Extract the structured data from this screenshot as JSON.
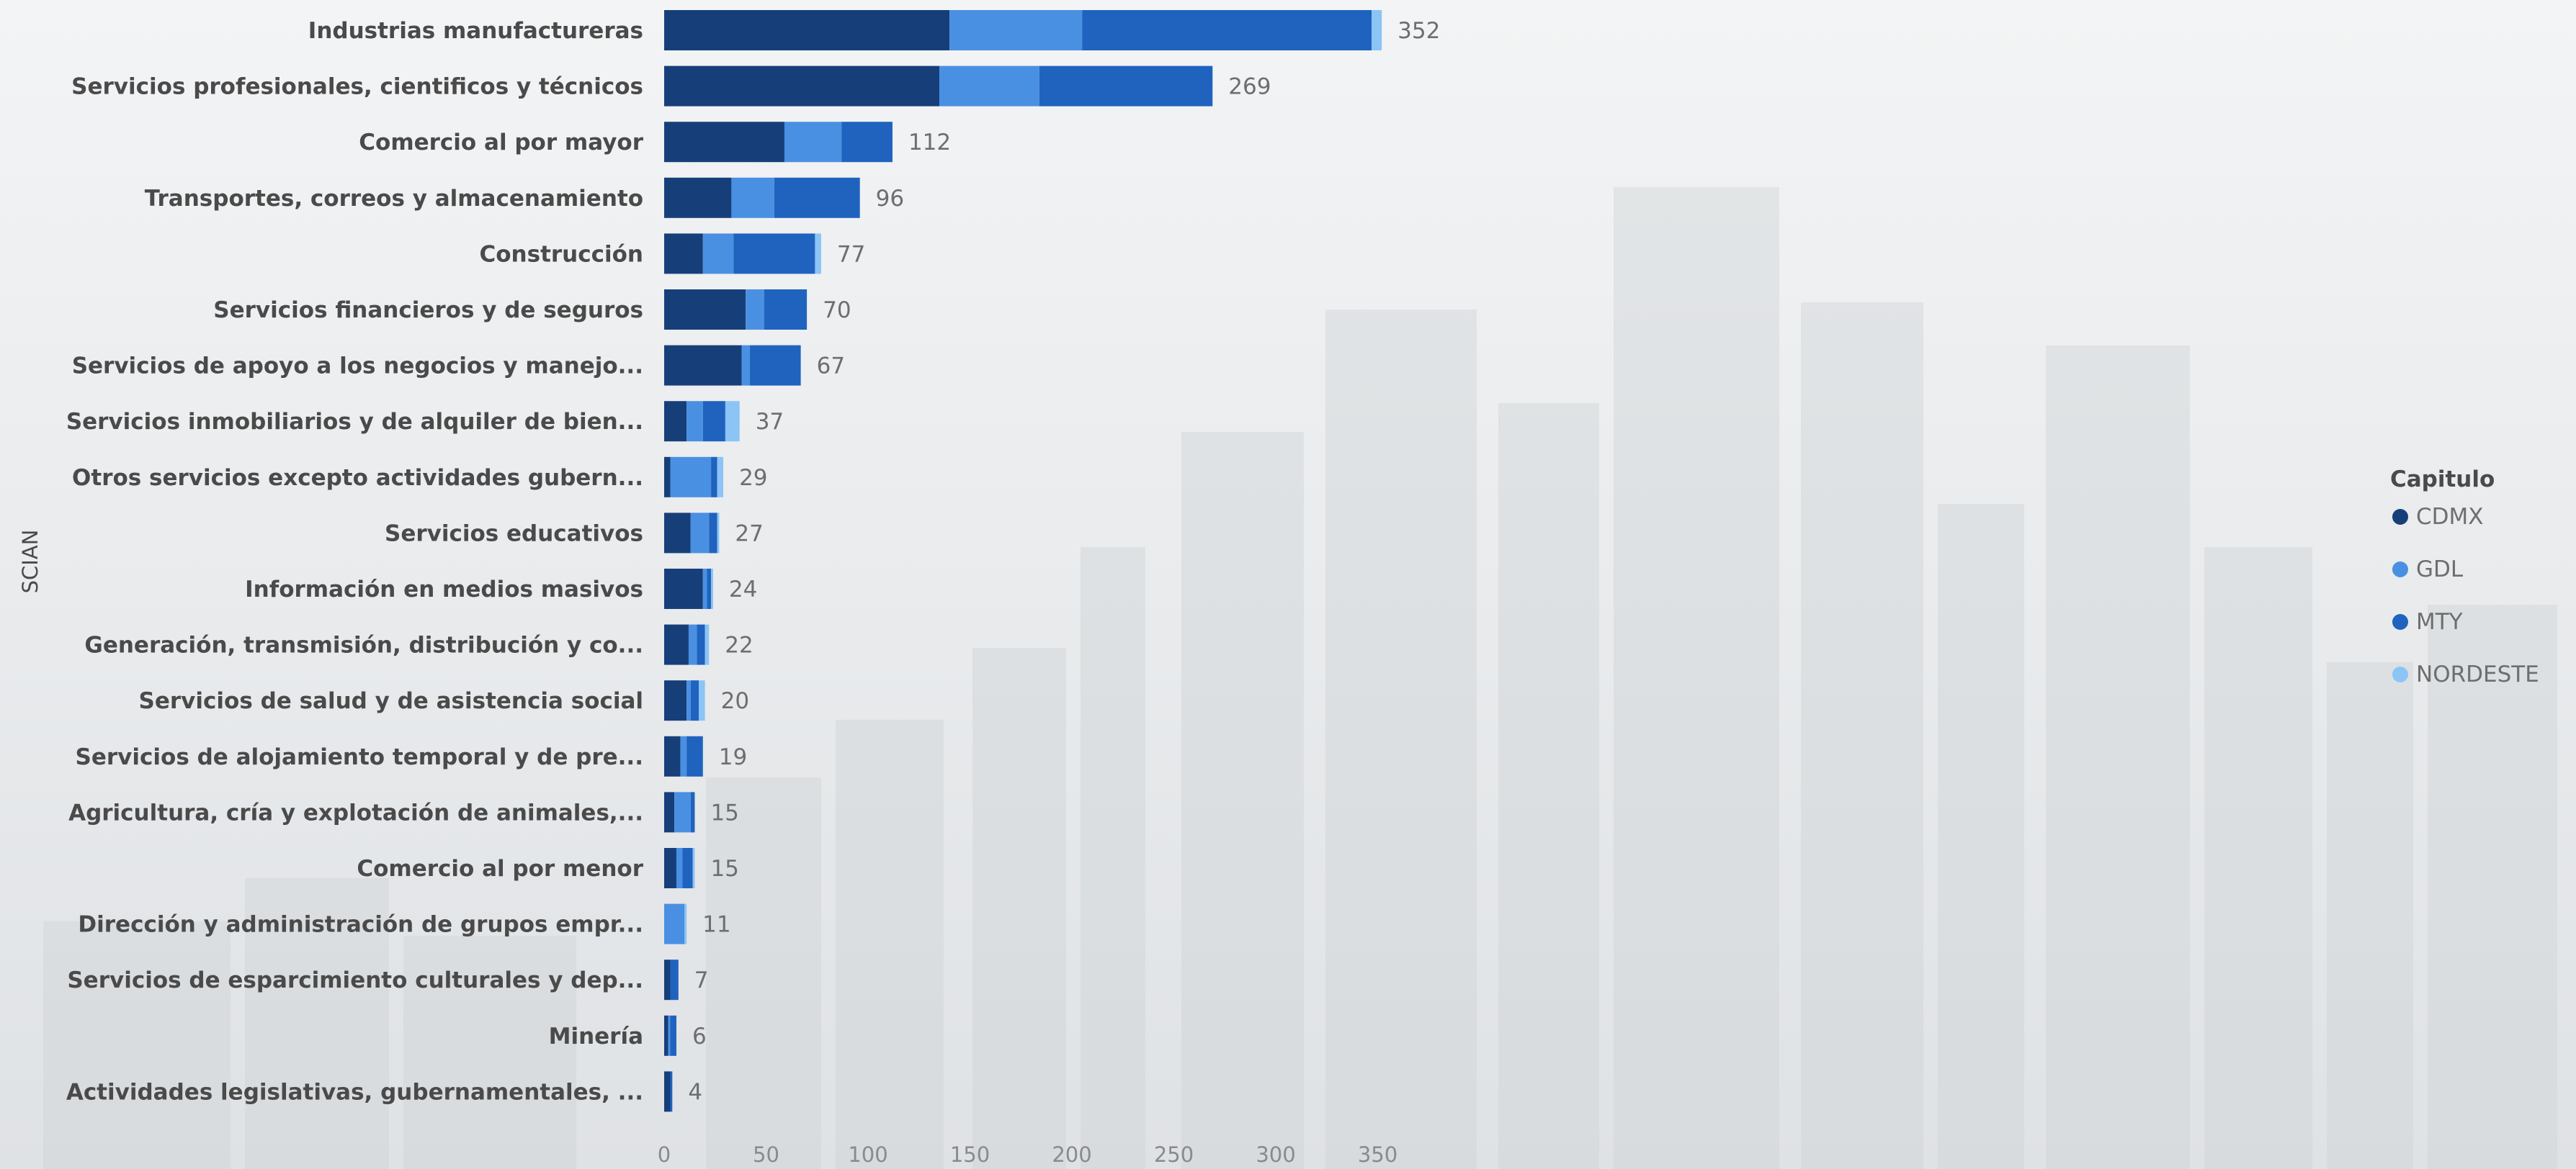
{
  "chart_data": {
    "type": "bar",
    "orientation": "horizontal",
    "stacked": true,
    "ylabel": "SCIAN",
    "xlabel": "",
    "xlim": [
      0,
      352
    ],
    "xticks": [
      0,
      50,
      100,
      150,
      200,
      250,
      300,
      350
    ],
    "grid": false,
    "legend_title": "Capitulo",
    "legend_position": "right",
    "categories": [
      "Industrias manufactureras",
      "Servicios profesionales, cientificos y técnicos",
      "Comercio al por mayor",
      "Transportes, correos y almacenamiento",
      "Construcción",
      "Servicios financieros y de seguros",
      "Servicios de apoyo a los negocios y manejo...",
      "Servicios inmobiliarios y de alquiler de bien...",
      "Otros servicios excepto actividades gubern...",
      "Servicios educativos",
      "Información en medios masivos",
      "Generación, transmisión, distribución y co...",
      "Servicios de salud y de asistencia social",
      "Servicios de alojamiento temporal y de pre...",
      "Agricultura, cría y explotación de animales,...",
      "Comercio al por menor",
      "Dirección y administración de grupos empr...",
      "Servicios de esparcimiento culturales y dep...",
      "Minería",
      "Actividades legislativas, gubernamentales, ..."
    ],
    "totals": [
      352,
      269,
      112,
      96,
      77,
      70,
      67,
      37,
      29,
      27,
      24,
      22,
      20,
      19,
      15,
      15,
      11,
      7,
      6,
      4
    ],
    "series": [
      {
        "name": "CDMX",
        "color": "#163f7a",
        "values": [
          140,
          135,
          59,
          33,
          19,
          40,
          38,
          11,
          3,
          13,
          19,
          12,
          11,
          8,
          5,
          6,
          0,
          3,
          2,
          3
        ]
      },
      {
        "name": "GDL",
        "color": "#4a90e2",
        "values": [
          65,
          49,
          28,
          21,
          15,
          9,
          4,
          8,
          20,
          9,
          2,
          4,
          2,
          3,
          8,
          3,
          10,
          0,
          1,
          0
        ]
      },
      {
        "name": "MTY",
        "color": "#1f63bf",
        "values": [
          142,
          85,
          25,
          42,
          40,
          21,
          25,
          11,
          3,
          4,
          2,
          4,
          4,
          8,
          2,
          5,
          0,
          4,
          3,
          1
        ]
      },
      {
        "name": "NORDESTE",
        "color": "#8cc4f5",
        "values": [
          5,
          0,
          0,
          0,
          3,
          0,
          0,
          7,
          3,
          1,
          1,
          2,
          3,
          0,
          0,
          1,
          1,
          0,
          0,
          0
        ]
      }
    ]
  }
}
